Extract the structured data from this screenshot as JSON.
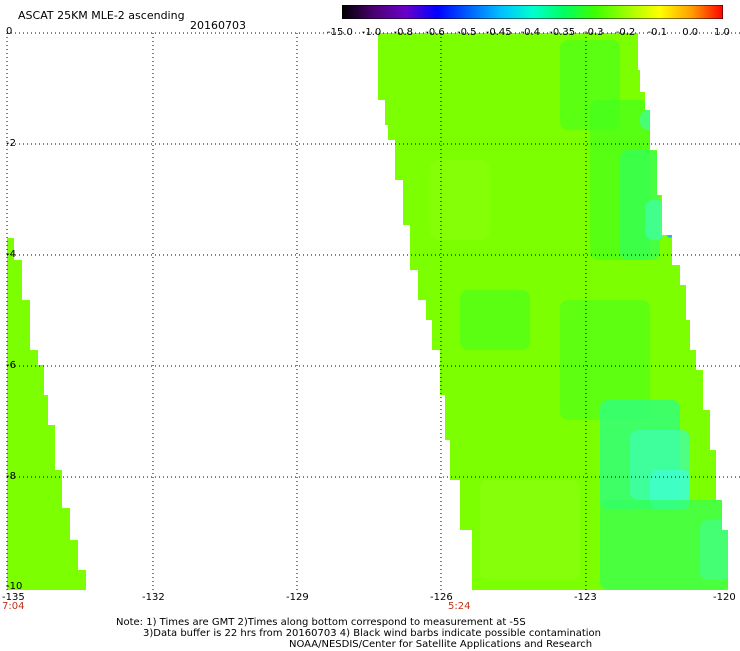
{
  "header": {
    "title": "ASCAT 25KM MLE-2 ascending",
    "date": "20160703"
  },
  "colorbar": {
    "labels": [
      "-15.0",
      "-1.0",
      "-0.8",
      "-0.6",
      "-0.5",
      "-0.45",
      "-0.4",
      "-0.35",
      "-0.3",
      "-0.2",
      "-0.1",
      "0.0",
      "1.0"
    ],
    "colors": [
      "#000000",
      "#4a0070",
      "#6a00c8",
      "#0000ff",
      "#0060ff",
      "#00c0ff",
      "#00ffd0",
      "#00ff60",
      "#40ff00",
      "#a0ff00",
      "#ffff00",
      "#ffa000",
      "#ff0000"
    ]
  },
  "axes": {
    "y_ticks": [
      "0",
      "-2",
      "-4",
      "-6",
      "-8",
      "-10"
    ],
    "x_ticks": [
      "-135",
      "-132",
      "-129",
      "-126",
      "-123",
      "-120"
    ],
    "time_labels": [
      "7:04",
      "5:24"
    ]
  },
  "notes": [
    "Note: 1) Times are GMT 2)Times along bottom correspond to measurement at -5S",
    "3)Data buffer is 22 hrs from 20160703 4) Black wind barbs indicate possible contamination",
    "NOAA/NESDIS/Center for Satellite Applications and Research"
  ],
  "palette": {
    "swath_green": "#7cff00",
    "swath_lime": "#8cff10",
    "swath_deep": "#40ff20",
    "swath_cyan": "#40ffa0",
    "swath_blue": "#1090ff",
    "time_red": "#c03018"
  }
}
